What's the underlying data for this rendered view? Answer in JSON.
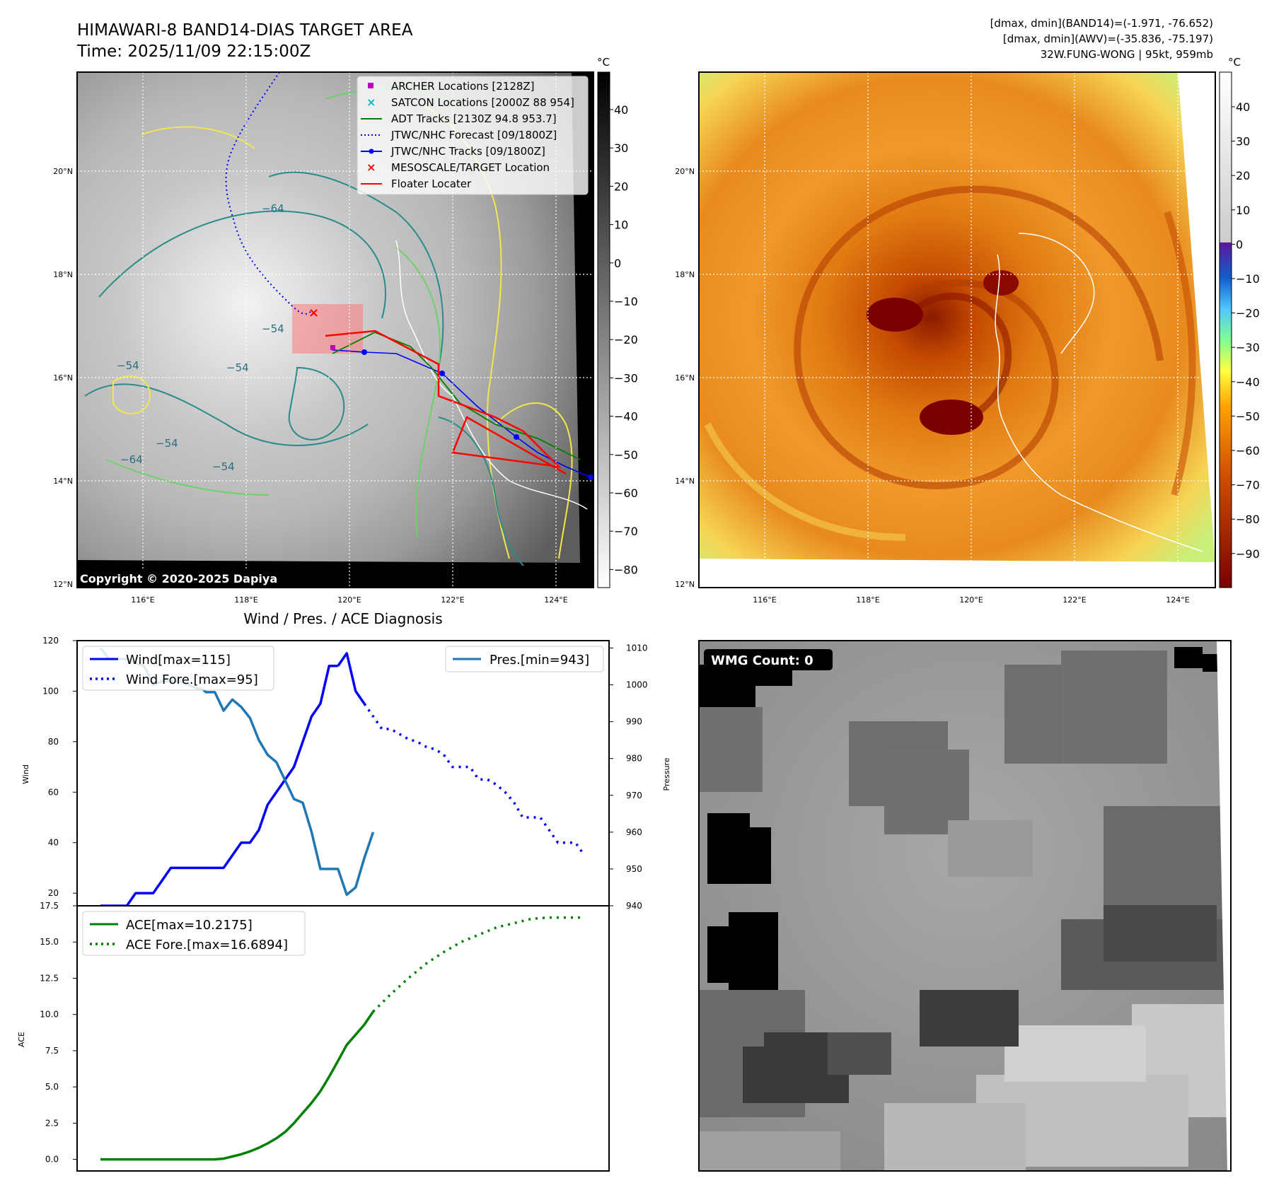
{
  "header": {
    "title_line1": "HIMAWARI-8 BAND14-DIAS TARGET AREA",
    "title_line2": "Time: 2025/11/09 22:15:00Z",
    "right_line1": "[dmax, dmin](BAND14)=(-1.971, -76.652)",
    "right_line2": "[dmax, dmin](AWV)=(-35.836, -75.197)",
    "right_line3": "32W.FUNG-WONG | 95kt, 959mb"
  },
  "map_ticks": {
    "lat": [
      "20°N",
      "18°N",
      "16°N",
      "14°N",
      "12°N"
    ],
    "lon": [
      "116°E",
      "118°E",
      "120°E",
      "122°E",
      "124°E"
    ]
  },
  "ir_map": {
    "unit": "°C",
    "colorbar_ticks": [
      "40",
      "30",
      "20",
      "10",
      "0",
      "−10",
      "−20",
      "−30",
      "−40",
      "−50",
      "−60",
      "−70",
      "−80"
    ],
    "copyright": "Copyright © 2020-2025 Dapiya",
    "contour_labels": [
      "−64",
      "−54",
      "−54",
      "−64",
      "−54",
      "−54",
      "−54"
    ],
    "legend": [
      {
        "label": "ARCHER Locations [2128Z]",
        "color": "#bf00bf",
        "kind": "square"
      },
      {
        "label": "SATCON Locations [2000Z 88 954]",
        "color": "#00bfbf",
        "kind": "x"
      },
      {
        "label": "ADT Tracks [2130Z 94.8 953.7]",
        "color": "#008000",
        "kind": "line"
      },
      {
        "label": "JTWC/NHC Forecast [09/1800Z]",
        "color": "#0000ff",
        "kind": "dotted"
      },
      {
        "label": "JTWC/NHC Tracks [09/1800Z]",
        "color": "#0000ff",
        "kind": "line-dot"
      },
      {
        "label": "MESOSCALE/TARGET Location",
        "color": "#ff0000",
        "kind": "x"
      },
      {
        "label": "Floater Locater",
        "color": "#ff0000",
        "kind": "line"
      }
    ]
  },
  "enh_map": {
    "unit": "°C",
    "colorbar_ticks": [
      "40",
      "30",
      "20",
      "10",
      "0",
      "−10",
      "−20",
      "−30",
      "−40",
      "−50",
      "−60",
      "−70",
      "−80",
      "−90"
    ]
  },
  "wmg": {
    "label": "WMG Count: 0"
  },
  "chart_data": [
    {
      "type": "line",
      "title": "Wind / Pres. / ACE Diagnosis",
      "ylabel": "Wind",
      "ylabel_right": "Pressure",
      "ylim": [
        15,
        120
      ],
      "ylim_right": [
        940,
        1012
      ],
      "yticks": [
        20,
        40,
        60,
        80,
        100,
        120
      ],
      "yticks_right": [
        940,
        950,
        960,
        970,
        980,
        990,
        1000,
        1010
      ],
      "legend_left": [
        "Wind[max=115]",
        "Wind Fore.[max=95]"
      ],
      "legend_right": [
        "Pres.[min=943]"
      ],
      "series": [
        {
          "name": "Wind[max=115]",
          "color": "#0000ff",
          "style": "solid",
          "axis": "left",
          "x": [
            0,
            1,
            2,
            3,
            4,
            5,
            6,
            7,
            8,
            9,
            10,
            11,
            12,
            13,
            14,
            15,
            16,
            17,
            18,
            19,
            20,
            21,
            22,
            23,
            24,
            25,
            26,
            27
          ],
          "values": [
            15,
            15,
            15,
            15,
            20,
            20,
            20,
            25,
            30,
            30,
            30,
            30,
            30,
            30,
            30,
            35,
            40,
            40,
            45,
            55,
            60,
            65,
            70,
            80,
            90,
            95,
            110,
            110
          ]
        },
        {
          "name": "Wind[max=115]",
          "color": "#0000ff",
          "style": "solid",
          "axis": "left",
          "x": [
            27,
            28,
            29,
            30
          ],
          "values": [
            110,
            115,
            100,
            95
          ]
        },
        {
          "name": "Wind Fore.[max=95]",
          "color": "#0000ff",
          "style": "dotted",
          "axis": "left",
          "x": [
            30,
            31,
            32,
            33,
            34,
            35,
            36,
            37,
            38,
            39,
            40,
            41,
            42,
            43,
            44,
            45,
            46,
            47,
            48,
            49,
            50,
            51,
            52,
            53,
            54,
            55
          ],
          "values": [
            95,
            90,
            85,
            85,
            83,
            81,
            80,
            78,
            77,
            75,
            70,
            70,
            70,
            65,
            65,
            63,
            60,
            56,
            50,
            50,
            50,
            45,
            40,
            40,
            40,
            35
          ]
        },
        {
          "name": "Pres.[min=943]",
          "color": "#1f77b4",
          "style": "solid",
          "axis": "right",
          "x": [
            0,
            1,
            2,
            3,
            4,
            5,
            6,
            7,
            8,
            9,
            10,
            11,
            11.5,
            12,
            13,
            14,
            15,
            16,
            17,
            18,
            19,
            20,
            21,
            22,
            23,
            24,
            25,
            26,
            27,
            28,
            29,
            30,
            31
          ],
          "values": [
            1010,
            1007,
            1007,
            1007,
            1006,
            1005,
            1000,
            1001,
            1001,
            1001,
            1000,
            999,
            999,
            998,
            998,
            993,
            996,
            994,
            991,
            985,
            981,
            979,
            974,
            969,
            968,
            960,
            950,
            950,
            950,
            943,
            945,
            953,
            960
          ]
        }
      ]
    },
    {
      "type": "line",
      "ylabel": "ACE",
      "ylim": [
        -0.8,
        17.5
      ],
      "yticks": [
        0.0,
        2.5,
        5.0,
        7.5,
        10.0,
        12.5,
        15.0,
        17.5
      ],
      "legend": [
        "ACE[max=10.2175]",
        "ACE Fore.[max=16.6894]"
      ],
      "series": [
        {
          "name": "ACE[max=10.2175]",
          "color": "#008000",
          "style": "solid",
          "x": [
            0,
            2,
            4,
            6,
            8,
            10,
            12,
            13,
            14,
            15,
            16,
            17,
            18,
            19,
            20,
            21,
            22,
            23,
            24,
            25,
            26,
            27,
            28,
            29,
            30,
            31
          ],
          "values": [
            0,
            0,
            0,
            0,
            0,
            0,
            0,
            0,
            0.05,
            0.2,
            0.35,
            0.55,
            0.8,
            1.1,
            1.45,
            1.9,
            2.5,
            3.2,
            3.9,
            4.7,
            5.7,
            6.8,
            7.9,
            8.6,
            9.3,
            10.2
          ]
        },
        {
          "name": "ACE Fore.[max=16.6894]",
          "color": "#008000",
          "style": "dotted",
          "x": [
            31,
            33,
            35,
            37,
            39,
            41,
            43,
            45,
            47,
            49,
            51,
            53,
            55
          ],
          "values": [
            10.2,
            11.4,
            12.5,
            13.5,
            14.3,
            15.0,
            15.5,
            16.0,
            16.3,
            16.6,
            16.69,
            16.69,
            16.69
          ]
        }
      ]
    }
  ]
}
